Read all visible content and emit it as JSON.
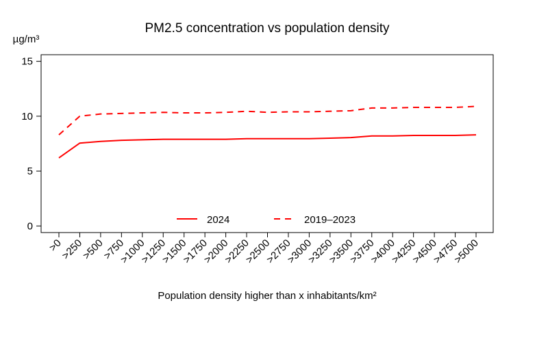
{
  "chart_data": {
    "type": "line",
    "title": "PM2.5 concentration vs population density",
    "y_label": "µg/m³",
    "x_label": "Population density higher than x inhabitants/km²",
    "categories": [
      ">0",
      ">250",
      ">500",
      ">750",
      ">1000",
      ">1250",
      ">1500",
      ">1750",
      ">2000",
      ">2250",
      ">2500",
      ">2750",
      ">3000",
      ">3250",
      ">3500",
      ">3750",
      ">4000",
      ">4250",
      ">4500",
      ">4750",
      ">5000"
    ],
    "series": [
      {
        "name": "2024",
        "color": "#ff0000",
        "linestyle": "solid",
        "values": [
          6.2,
          7.55,
          7.7,
          7.8,
          7.85,
          7.9,
          7.9,
          7.9,
          7.9,
          7.95,
          7.95,
          7.95,
          7.95,
          8.0,
          8.05,
          8.2,
          8.2,
          8.25,
          8.25,
          8.25,
          8.3
        ]
      },
      {
        "name": "2019–2023",
        "color": "#ff0000",
        "linestyle": "dashed",
        "values": [
          8.3,
          10.0,
          10.2,
          10.25,
          10.3,
          10.35,
          10.3,
          10.3,
          10.35,
          10.45,
          10.35,
          10.4,
          10.4,
          10.45,
          10.5,
          10.75,
          10.75,
          10.8,
          10.8,
          10.8,
          10.9
        ]
      }
    ],
    "ylim": [
      -0.6,
      15.6
    ],
    "yticks": [
      0,
      5,
      10,
      15
    ],
    "legend": "bottom"
  }
}
